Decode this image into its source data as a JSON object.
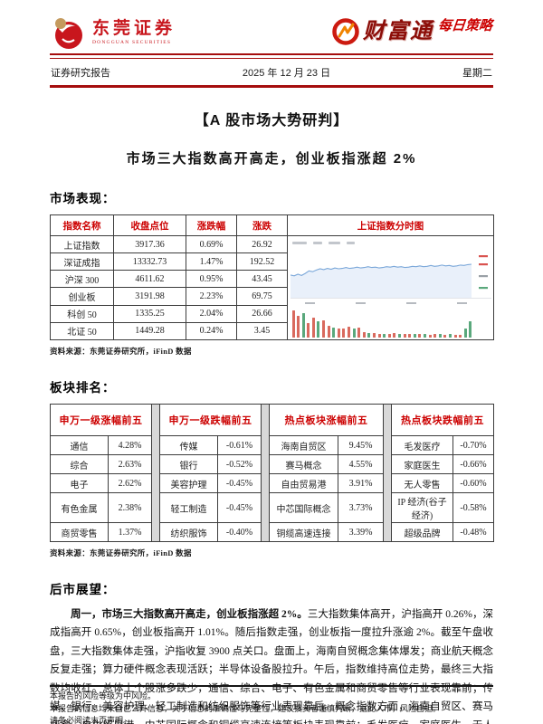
{
  "header": {
    "company_name": "东莞证券",
    "company_name_en": "DONGGUAN SECURITIES",
    "product_logo": "财富通",
    "product_tagline": "每日策略",
    "report_type": "证券研究报告",
    "date": "2025 年 12 月 23 日",
    "weekday": "星期二"
  },
  "title": "【A 股市场大势研判】",
  "subtitle": "市场三大指数高开高走，创业板指涨超 2%",
  "market_section": {
    "heading": "市场表现：",
    "table": {
      "headers": [
        "指数名称",
        "收盘点位",
        "涨跌幅",
        "涨跌"
      ],
      "chart_header": "上证指数分时图",
      "rows": [
        [
          "上证指数",
          "3917.36",
          "0.69%",
          "26.92"
        ],
        [
          "深证成指",
          "13332.73",
          "1.47%",
          "192.52"
        ],
        [
          "沪深 300",
          "4611.62",
          "0.95%",
          "43.45"
        ],
        [
          "创业板",
          "3191.98",
          "2.23%",
          "69.75"
        ],
        [
          "科创 50",
          "1335.25",
          "2.04%",
          "26.66"
        ],
        [
          "北证 50",
          "1449.28",
          "0.24%",
          "3.45"
        ]
      ]
    },
    "source": "资料来源：东莞证券研究所，iFinD 数据"
  },
  "chart_data": {
    "type": "line",
    "title": "上证指数分时图",
    "series_name": "上证指数",
    "close": 3917.36,
    "change": 26.92,
    "change_pct": "0.69%",
    "line_points": [
      48,
      46,
      50,
      47,
      52,
      58,
      56,
      60,
      63,
      61,
      64,
      62,
      65,
      63,
      64,
      66,
      64,
      65,
      67,
      65,
      66,
      68,
      66,
      67,
      65,
      66,
      68,
      67,
      69,
      67,
      68,
      66,
      67,
      69,
      68,
      70,
      68,
      69,
      71,
      69,
      70,
      72,
      70,
      71,
      69,
      70,
      72,
      71,
      73,
      74
    ],
    "volume_bars": [
      95,
      75,
      85,
      50,
      70,
      55,
      60,
      40,
      35,
      30,
      32,
      38,
      30,
      34,
      18,
      15,
      16,
      14,
      12,
      14,
      15,
      12,
      13,
      14,
      11,
      13,
      12,
      10,
      12,
      11,
      10,
      12,
      10,
      9,
      30,
      55
    ],
    "volume_colors": [
      "r",
      "r",
      "g",
      "r",
      "r",
      "g",
      "r",
      "r",
      "g",
      "r",
      "r",
      "r",
      "g",
      "r",
      "r",
      "g",
      "r",
      "r",
      "g",
      "r",
      "r",
      "g",
      "r",
      "r",
      "g",
      "r",
      "g",
      "r",
      "r",
      "g",
      "r",
      "g",
      "r",
      "r",
      "g",
      "g"
    ]
  },
  "sector_section": {
    "heading": "板块排名：",
    "groups": [
      {
        "title": "申万一级涨幅前五",
        "rows": [
          [
            "通信",
            "4.28%"
          ],
          [
            "综合",
            "2.63%"
          ],
          [
            "电子",
            "2.62%"
          ],
          [
            "有色金属",
            "2.38%"
          ],
          [
            "商贸零售",
            "1.37%"
          ]
        ]
      },
      {
        "title": "申万一级跌幅前五",
        "rows": [
          [
            "传媒",
            "-0.61%"
          ],
          [
            "银行",
            "-0.52%"
          ],
          [
            "美容护理",
            "-0.45%"
          ],
          [
            "轻工制造",
            "-0.45%"
          ],
          [
            "纺织服饰",
            "-0.40%"
          ]
        ]
      },
      {
        "title": "热点板块涨幅前五",
        "rows": [
          [
            "海南自贸区",
            "9.45%"
          ],
          [
            "赛马概念",
            "4.55%"
          ],
          [
            "自由贸易港",
            "3.91%"
          ],
          [
            "中芯国际概念",
            "3.73%"
          ],
          [
            "铜缆高速连接",
            "3.39%"
          ]
        ]
      },
      {
        "title": "热点板块跌幅前五",
        "rows": [
          [
            "毛发医疗",
            "-0.70%"
          ],
          [
            "家庭医生",
            "-0.66%"
          ],
          [
            "无人零售",
            "-0.60%"
          ],
          [
            "IP 经济(谷子经济)",
            "-0.58%"
          ],
          [
            "超级品牌",
            "-0.48%"
          ]
        ]
      }
    ],
    "source": "资料来源：东莞证券研究所，iFinD 数据"
  },
  "outlook_section": {
    "heading": "后市展望：",
    "lead": "周一，市场三大指数高开高走，创业板指涨超 2%。",
    "body": "三大指数集体高开，沪指高开 0.26%，深成指高开 0.65%，创业板指高开 1.01%。随后指数走强，创业板指一度拉升涨逾 2%。截至午盘收盘，三大指数集体走强，沪指收复 3900 点关口。盘面上，海南自贸概念集体爆发；商业航天概念反复走强；算力硬件概念表现活跃；半导体设备股拉升。午后，指数维持高位走势，最终三大指数均收红。总体上个股涨多跌少，通信、综合、电子、有色金属和商贸零售等行业表现靠前；传媒、银行、美容护理、轻工制造和纺织服饰等行业表现靠后。概念指数方面，海南自贸区、赛马概念、自由贸易港、中芯国际概念和铜缆高速连接等板块表现靠前；毛发医疗、家庭医生、无人零售、IP 经济(谷子经济)和超级品牌等板"
  },
  "footer": {
    "lines": [
      "本报告的风险等级为中风险。",
      "本报告的信息均来自已公开信息，关于信息的准确性与完整性，建议投资者谨慎判断，据此入市，风险自担。",
      "请务必阅读末页声明。"
    ]
  },
  "colors": {
    "accent_red": "#a50d0d",
    "table_header_red": "#cc0000",
    "brand_red": "#c8161d",
    "chart_line": "#7aa7d9",
    "chart_fill": "#e9f0fa",
    "vol_up_red": "#d96a5e",
    "vol_down_green": "#5aa87c",
    "spacer_gray": "#d8d8d8"
  }
}
